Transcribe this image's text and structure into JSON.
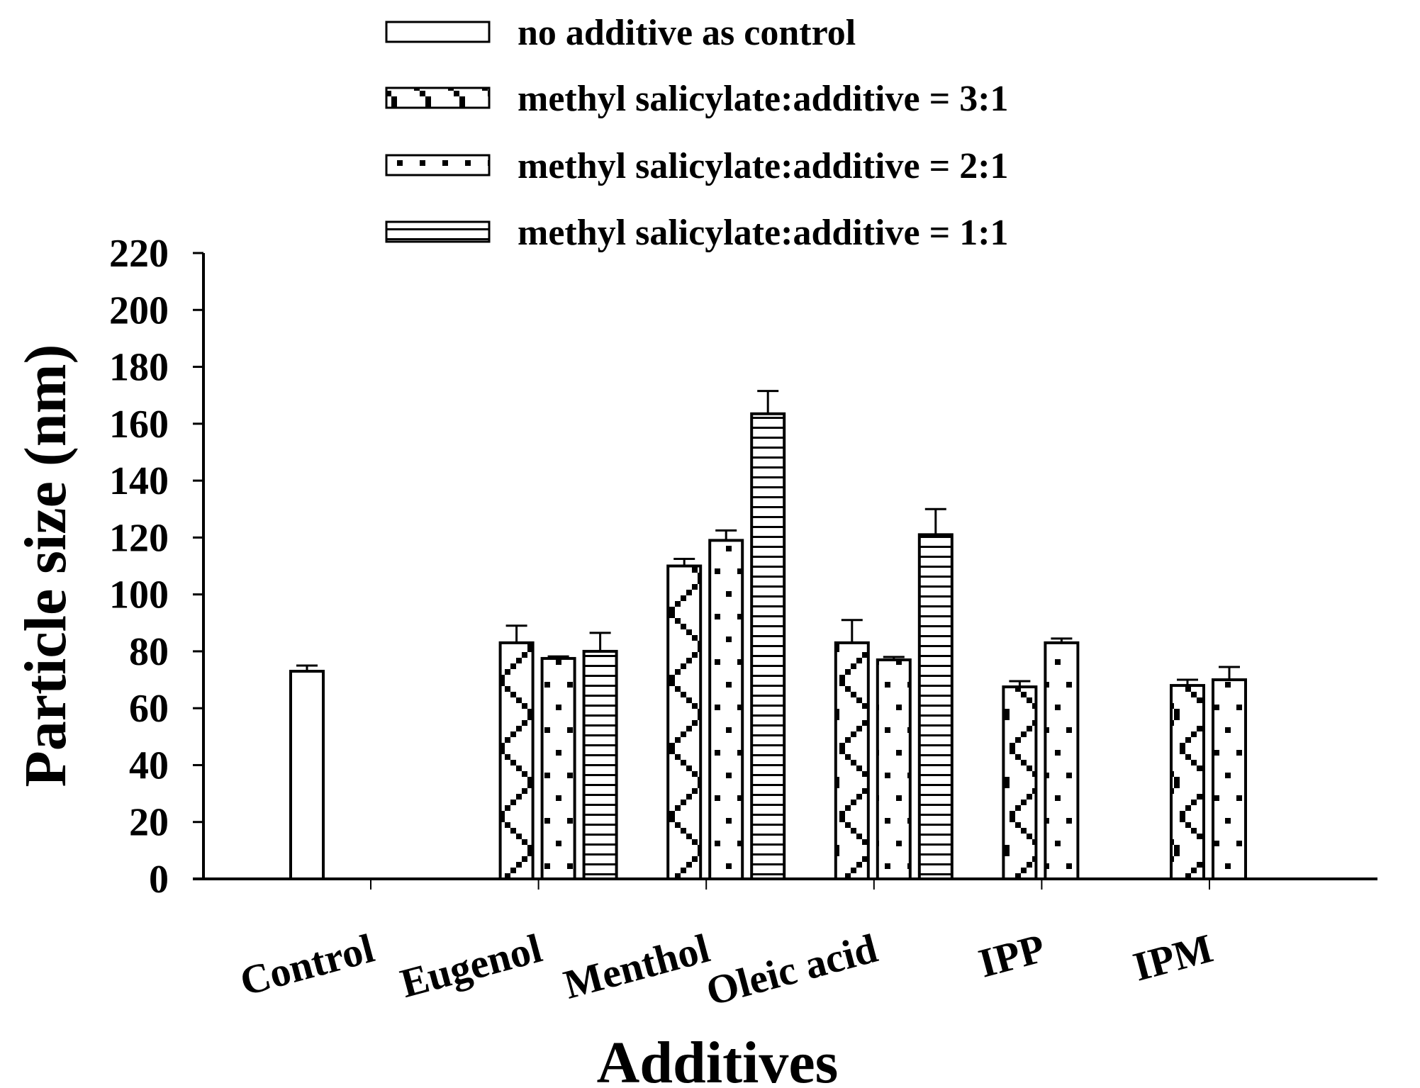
{
  "chart_data": {
    "type": "bar",
    "title": "",
    "xlabel": "Additives",
    "ylabel": "Particle size (nm)",
    "ylim": [
      0,
      220
    ],
    "yticks": [
      "0",
      "20",
      "40",
      "60",
      "80",
      "100",
      "120",
      "140",
      "160",
      "180",
      "200",
      "220"
    ],
    "categories": [
      "Control",
      "Eugenol",
      "Menthol",
      "Oleic acid",
      "IPP",
      "IPM"
    ],
    "legend_position": "top",
    "series": [
      {
        "name": "no additive as control",
        "pattern": "none",
        "values": [
          73,
          null,
          null,
          null,
          null,
          null
        ],
        "errors": [
          2,
          null,
          null,
          null,
          null,
          null
        ]
      },
      {
        "name": "methyl salicylate:additive = 3:1",
        "pattern": "cross",
        "values": [
          null,
          83,
          110,
          83,
          67.5,
          68
        ],
        "errors": [
          null,
          6,
          2.5,
          8,
          2,
          2
        ]
      },
      {
        "name": "methyl salicylate:additive = 2:1",
        "pattern": "dots",
        "values": [
          null,
          77.5,
          119,
          77,
          83,
          70
        ],
        "errors": [
          null,
          0.7,
          3.5,
          1,
          1.5,
          4.5
        ]
      },
      {
        "name": "methyl salicylate:additive = 1:1",
        "pattern": "hlines",
        "values": [
          null,
          80,
          163.5,
          121,
          null,
          null
        ],
        "errors": [
          null,
          6.5,
          8,
          9,
          null,
          null
        ]
      }
    ]
  },
  "colors": {
    "ink": "#000000",
    "background": "#ffffff"
  }
}
